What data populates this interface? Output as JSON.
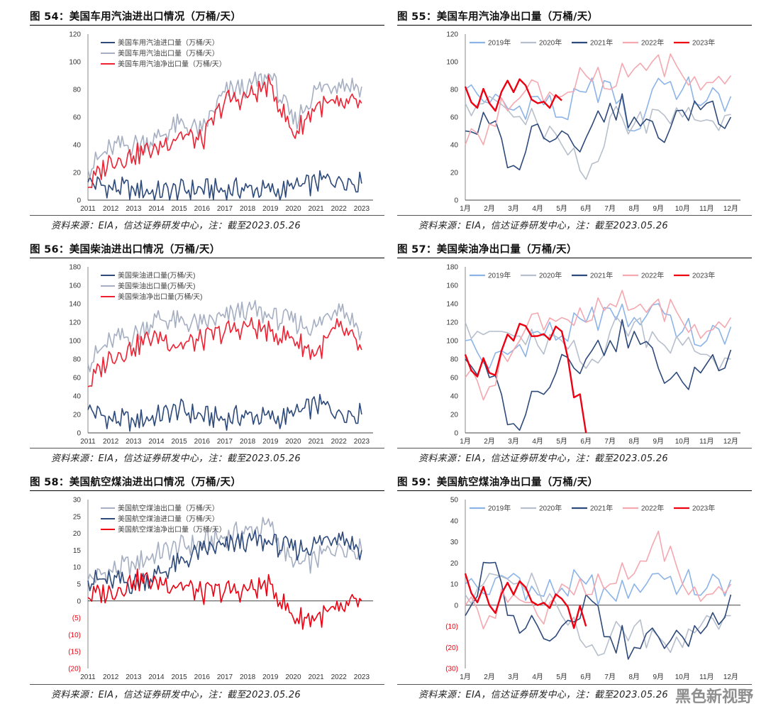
{
  "panels": [
    {
      "title": "图 54：美国车用汽油进出口情况（万桶/天）",
      "source": "资料来源：EIA，信达证券研发中心，注：截至2023.05.26",
      "chart_data": {
        "type": "line",
        "x_labels": [
          "2011",
          "2012",
          "2013",
          "2014",
          "2015",
          "2016",
          "2017",
          "2018",
          "2019",
          "2020",
          "2021",
          "2022",
          "2023"
        ],
        "ylim": [
          0,
          120
        ],
        "y_ticks": [
          0,
          20,
          40,
          60,
          80,
          100,
          120
        ],
        "legend_position": "top-left",
        "series": [
          {
            "name": "美国车用汽油进口量（万桶/天）",
            "color": "#2e4a7a",
            "values": [
              13,
              9,
              8,
              6,
              7,
              8,
              7,
              9,
              6,
              8,
              12,
              17,
              12
            ]
          },
          {
            "name": "美国车用汽油出口量（万桶/天）",
            "color": "#a6afc2",
            "values": [
              22,
              38,
              40,
              45,
              55,
              50,
              78,
              82,
              90,
              55,
              80,
              85,
              82
            ]
          },
          {
            "name": "美国车用汽油净出口量（万桶/天）",
            "color": "#ee2233",
            "values": [
              9,
              30,
              32,
              38,
              48,
              42,
              72,
              74,
              84,
              47,
              68,
              68,
              70
            ]
          }
        ]
      }
    },
    {
      "title": "图 55：美国车用汽油净出口量（万桶/天）",
      "source": "资料来源：EIA，信达证券研发中心，注：截至2023.05.26",
      "chart_data": {
        "type": "line",
        "x_labels": [
          "1月",
          "2月",
          "3月",
          "4月",
          "5月",
          "6月",
          "7月",
          "8月",
          "9月",
          "10月",
          "11月",
          "12月"
        ],
        "ylim": [
          0,
          120
        ],
        "y_ticks": [
          0,
          20,
          40,
          60,
          80,
          100,
          120
        ],
        "legend_position": "top",
        "series": [
          {
            "name": "2019年",
            "color": "#8db4e8",
            "values": [
              80,
              70,
              65,
              75,
              60,
              78,
              85,
              50,
              88,
              80,
              72,
              75
            ]
          },
          {
            "name": "2020年",
            "color": "#b7bfcc",
            "values": [
              70,
              75,
              60,
              55,
              40,
              15,
              60,
              55,
              65,
              60,
              58,
              62
            ]
          },
          {
            "name": "2021年",
            "color": "#2e4a7a",
            "values": [
              50,
              55,
              25,
              55,
              50,
              45,
              70,
              60,
              45,
              65,
              70,
              60
            ]
          },
          {
            "name": "2022年",
            "color": "#f4a8b0",
            "values": [
              40,
              55,
              70,
              85,
              75,
              90,
              80,
              95,
              105,
              90,
              85,
              90
            ]
          },
          {
            "name": "2023年",
            "color": "#ee0011",
            "values": [
              82,
              70,
              78,
              70,
              72
            ]
          }
        ]
      }
    },
    {
      "title": "图 56：美国柴油进出口情况（万桶/天）",
      "source": "资料来源：EIA，信达证券研发中心，注：截至2023.05.26",
      "chart_data": {
        "type": "line",
        "x_labels": [
          "2011",
          "2012",
          "2013",
          "2014",
          "2015",
          "2016",
          "2017",
          "2018",
          "2019",
          "2020",
          "2021",
          "2022",
          "2023"
        ],
        "ylim": [
          0,
          180
        ],
        "y_ticks": [
          0,
          20,
          40,
          60,
          80,
          100,
          120,
          140,
          160,
          180
        ],
        "legend_position": "top-left",
        "series": [
          {
            "name": "美国柴油进口量(万桶/天)",
            "color": "#2e4a7a",
            "values": [
              25,
              15,
              13,
              18,
              25,
              18,
              15,
              20,
              15,
              18,
              30,
              25,
              20
            ]
          },
          {
            "name": "美国柴油出口量(万桶/天)",
            "color": "#a6afc2",
            "values": [
              75,
              100,
              105,
              125,
              120,
              118,
              125,
              135,
              125,
              120,
              115,
              140,
              110
            ]
          },
          {
            "name": "美国柴油净出口量(万桶/天)",
            "color": "#ee2233",
            "values": [
              50,
              85,
              92,
              107,
              95,
              100,
              110,
              115,
              110,
              102,
              85,
              115,
              90
            ]
          }
        ]
      }
    },
    {
      "title": "图 57：美国柴油净出口量（万桶/天）",
      "source": "资料来源：EIA，信达证券研发中心，注：截至2023.05.26",
      "chart_data": {
        "type": "line",
        "x_labels": [
          "1月",
          "2月",
          "3月",
          "4月",
          "5月",
          "6月",
          "7月",
          "8月",
          "9月",
          "10月",
          "11月",
          "12月"
        ],
        "ylim": [
          0,
          180
        ],
        "y_ticks": [
          0,
          20,
          40,
          60,
          80,
          100,
          120,
          140,
          160,
          180
        ],
        "legend_position": "top",
        "series": [
          {
            "name": "2019年",
            "color": "#8db4e8",
            "values": [
              100,
              70,
              90,
              110,
              105,
              120,
              135,
              125,
              140,
              110,
              100,
              115
            ]
          },
          {
            "name": "2020年",
            "color": "#b7bfcc",
            "values": [
              120,
              110,
              105,
              95,
              100,
              70,
              110,
              120,
              100,
              95,
              85,
              80
            ]
          },
          {
            "name": "2021年",
            "color": "#2e4a7a",
            "values": [
              80,
              60,
              10,
              45,
              85,
              80,
              100,
              110,
              70,
              55,
              75,
              90
            ]
          },
          {
            "name": "2022年",
            "color": "#f4a8b0",
            "values": [
              60,
              50,
              90,
              130,
              125,
              120,
              140,
              135,
              145,
              120,
              110,
              125
            ]
          },
          {
            "name": "2023年",
            "color": "#ee0011",
            "values": [
              85,
              65,
              100,
              105,
              110,
              0
            ]
          }
        ]
      }
    },
    {
      "title": "图 58：美国航空煤油进出口情况（万桶/天）",
      "source": "资料来源：EIA，信达证券研发中心，注：截至2023.05.26",
      "chart_data": {
        "type": "line",
        "x_labels": [
          "2011",
          "2012",
          "2013",
          "2014",
          "2015",
          "2016",
          "2017",
          "2018",
          "2019",
          "2020",
          "2021",
          "2022",
          "2023"
        ],
        "ylim": [
          -20,
          30
        ],
        "y_ticks": [
          -20,
          -15,
          -10,
          -5,
          0,
          5,
          10,
          15,
          20,
          25,
          30
        ],
        "y_tick_labels": [
          "(20)",
          "(15)",
          "(10)",
          "(5)",
          "0",
          "5",
          "10",
          "15",
          "20",
          "25",
          "30"
        ],
        "legend_position": "top-left",
        "series": [
          {
            "name": "美国航空煤油出口量（万桶/天）",
            "color": "#a6afc2",
            "values": [
              6,
              9,
              11,
              14,
              16,
              17,
              19,
              21,
              22,
              10,
              12,
              17,
              15
            ]
          },
          {
            "name": "美国航空煤油进口量（万桶/天）",
            "color": "#2e4a7a",
            "values": [
              6,
              6,
              5,
              8,
              11,
              15,
              16,
              18,
              17,
              15,
              17,
              20,
              15
            ]
          },
          {
            "name": "美国航空煤油净出口量（万桶/天）",
            "color": "#ee0011",
            "values": [
              1,
              3,
              6,
              6,
              5,
              2,
              3,
              3,
              5,
              -5,
              -5,
              -3,
              0
            ]
          }
        ]
      }
    },
    {
      "title": "图 59：美国航空煤油净出口量（万桶/天）",
      "source": "资料来源：EIA，信达证券研发中心，注：截至2023.05.26",
      "chart_data": {
        "type": "line",
        "x_labels": [
          "1月",
          "2月",
          "3月",
          "4月",
          "5月",
          "6月",
          "7月",
          "8月",
          "9月",
          "10月",
          "11月",
          "12月"
        ],
        "ylim": [
          -30,
          50
        ],
        "y_ticks": [
          -30,
          -20,
          -10,
          0,
          10,
          20,
          30,
          40,
          50
        ],
        "y_tick_labels": [
          "(30)",
          "(20)",
          "(10)",
          "0",
          "10",
          "20",
          "30",
          "40",
          "50"
        ],
        "legend_position": "top",
        "series": [
          {
            "name": "2019年",
            "color": "#8db4e8",
            "values": [
              10,
              5,
              15,
              5,
              8,
              10,
              5,
              10,
              15,
              10,
              8,
              12
            ]
          },
          {
            "name": "2020年",
            "color": "#b7bfcc",
            "values": [
              5,
              15,
              10,
              8,
              -5,
              -20,
              -15,
              -10,
              -15,
              -20,
              -5,
              -5
            ]
          },
          {
            "name": "2021年",
            "color": "#2e4a7a",
            "values": [
              -5,
              20,
              -5,
              -10,
              -10,
              5,
              -15,
              -20,
              -15,
              -15,
              -10,
              5
            ]
          },
          {
            "name": "2022年",
            "color": "#f4a8b0",
            "values": [
              0,
              -5,
              5,
              -5,
              10,
              5,
              10,
              15,
              35,
              10,
              5,
              10
            ]
          },
          {
            "name": "2023年",
            "color": "#ee0011",
            "values": [
              15,
              0,
              5,
              0,
              3,
              -10
            ]
          }
        ]
      }
    }
  ],
  "watermark": "黑色新视野"
}
